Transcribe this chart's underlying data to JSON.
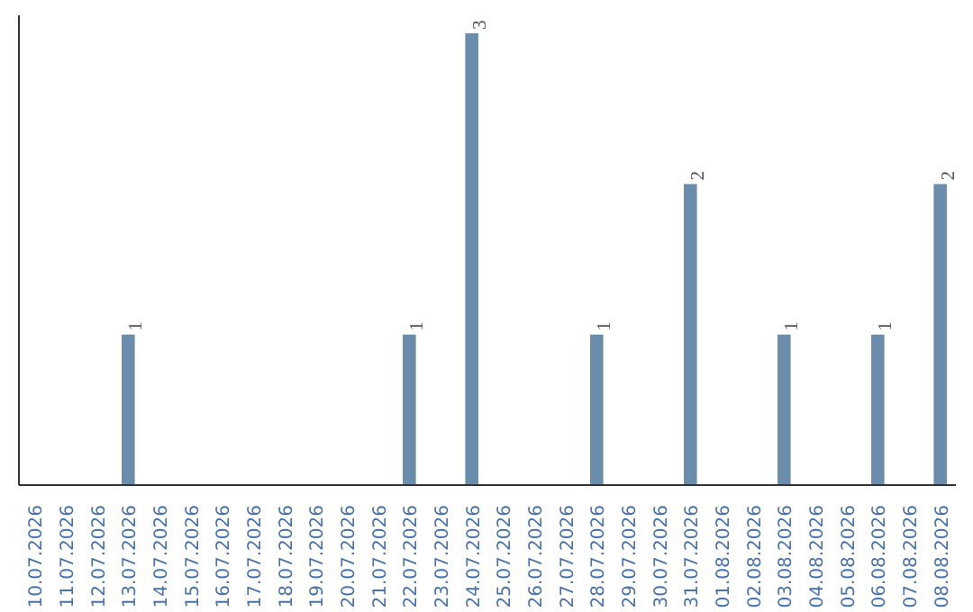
{
  "chart_data": {
    "type": "bar",
    "categories": [
      "10.07.2026",
      "11.07.2026",
      "12.07.2026",
      "13.07.2026",
      "14.07.2026",
      "15.07.2026",
      "16.07.2026",
      "17.07.2026",
      "18.07.2026",
      "19.07.2026",
      "20.07.2026",
      "21.07.2026",
      "22.07.2026",
      "23.07.2026",
      "24.07.2026",
      "25.07.2026",
      "26.07.2026",
      "27.07.2026",
      "28.07.2026",
      "29.07.2026",
      "30.07.2026",
      "31.07.2026",
      "01.08.2026",
      "02.08.2026",
      "03.08.2026",
      "04.08.2026",
      "05.08.2026",
      "06.08.2026",
      "07.08.2026",
      "08.08.2026"
    ],
    "values": [
      0,
      0,
      0,
      1,
      0,
      0,
      0,
      0,
      0,
      0,
      0,
      0,
      1,
      0,
      3,
      0,
      0,
      0,
      1,
      0,
      0,
      2,
      0,
      0,
      1,
      0,
      0,
      1,
      0,
      2
    ],
    "value_labels": [
      null,
      null,
      null,
      "1",
      null,
      null,
      null,
      null,
      null,
      null,
      null,
      null,
      "1",
      null,
      "3",
      null,
      null,
      null,
      "1",
      null,
      null,
      "2",
      null,
      null,
      "1",
      null,
      null,
      "1",
      null,
      "2"
    ],
    "color": "#6b8cab",
    "tick_labels": "x",
    "grid": false
  }
}
